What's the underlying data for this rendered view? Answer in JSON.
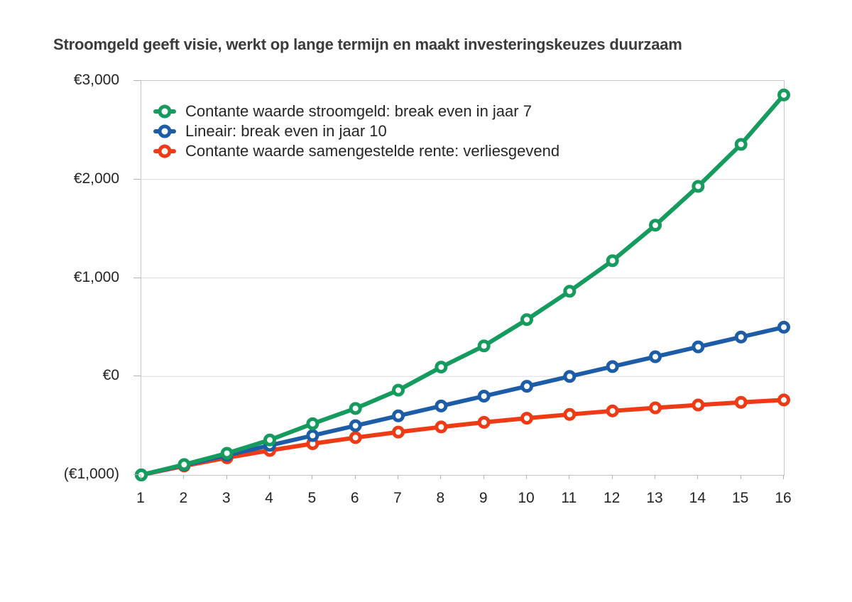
{
  "title": "Stroomgeld geeft visie, werkt op lange termijn en maakt investeringskeuzes duurzaam",
  "colors": {
    "title_text": "#3b3b3b",
    "label_text": "#232323",
    "plot_border": "#c6c6c6",
    "gridline": "#dedede",
    "tick": "#b3b3b3",
    "series_green": "#169b5f",
    "series_blue": "#1d5ca6",
    "series_red": "#ee3b16"
  },
  "chart_data": {
    "type": "line",
    "title": "Stroomgeld geeft visie, werkt op lange termijn en maakt investeringskeuzes duurzaam",
    "xlabel": "",
    "ylabel": "",
    "x": [
      1,
      2,
      3,
      4,
      5,
      6,
      7,
      8,
      9,
      10,
      11,
      12,
      13,
      14,
      15,
      16
    ],
    "xtick_labels": [
      "1",
      "2",
      "3",
      "4",
      "5",
      "6",
      "7",
      "8",
      "9",
      "10",
      "11",
      "12",
      "13",
      "14",
      "15",
      "16"
    ],
    "ylim": [
      -1000,
      3000
    ],
    "ytick_values": [
      3000,
      2000,
      1000,
      0,
      -1000
    ],
    "ytick_labels": [
      "€3,000",
      "€2,000",
      "€1,000",
      "€0",
      "(€1,000)"
    ],
    "gridline_values": [
      2000,
      1000,
      0
    ],
    "grid": "horizontal-light",
    "legend_position": "top-left-inside",
    "marker_style": "open-ring",
    "series": [
      {
        "name": "Contante waarde stroomgeld: break even in jaar 7",
        "color": "#169b5f",
        "values": [
          -1000,
          -895,
          -780,
          -645,
          -480,
          -325,
          -140,
          95,
          310,
          577,
          865,
          1175,
          1535,
          1930,
          2356,
          2858
        ]
      },
      {
        "name": "Lineair: break even in jaar 10",
        "color": "#1d5ca6",
        "values": [
          -1000,
          -900,
          -800,
          -700,
          -600,
          -500,
          -400,
          -300,
          -200,
          -100,
          0,
          100,
          200,
          300,
          400,
          500
        ]
      },
      {
        "name": "Contante waarde samengestelde rente: verliesgevend",
        "color": "#ee3b16",
        "values": [
          -1000,
          -909,
          -826,
          -751,
          -683,
          -621,
          -565,
          -513,
          -466,
          -424,
          -386,
          -350,
          -319,
          -290,
          -263,
          -239
        ]
      }
    ]
  }
}
